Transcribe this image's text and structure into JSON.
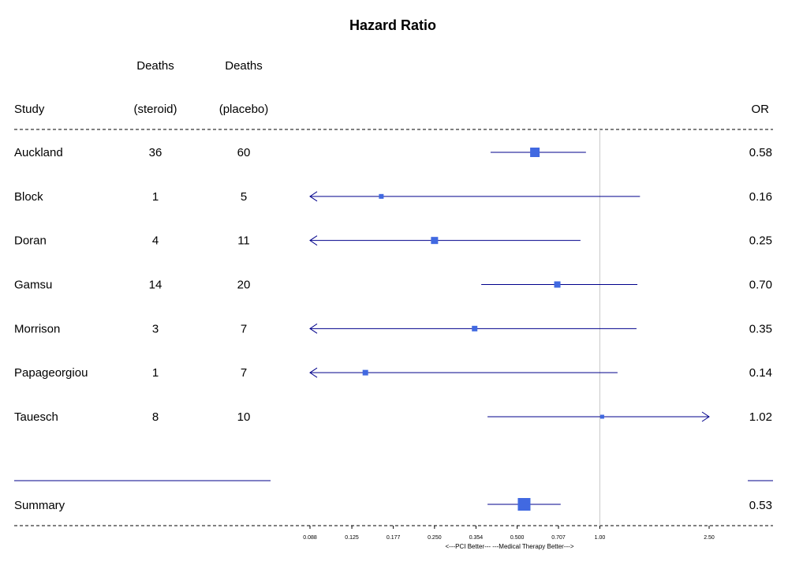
{
  "chart_data": {
    "type": "forest",
    "title": "Hazard Ratio",
    "columns": {
      "study_header": "Study",
      "steroid_header_line1": "Deaths",
      "steroid_header_line2": "(steroid)",
      "placebo_header_line1": "Deaths",
      "placebo_header_line2": "(placebo)",
      "or_header": "OR"
    },
    "studies": [
      {
        "study": "Auckland",
        "deaths_steroid": "36",
        "deaths_placebo": "60",
        "or_label": "0.58",
        "or": 0.58,
        "ci_low": 0.4,
        "ci_high": 0.89,
        "weight": 1.0
      },
      {
        "study": "Block",
        "deaths_steroid": "1",
        "deaths_placebo": "5",
        "or_label": "0.16",
        "or": 0.16,
        "ci_low": 0.02,
        "ci_high": 1.4,
        "weight": 0.5
      },
      {
        "study": "Doran",
        "deaths_steroid": "4",
        "deaths_placebo": "11",
        "or_label": "0.25",
        "or": 0.25,
        "ci_low": 0.03,
        "ci_high": 0.85,
        "weight": 0.75
      },
      {
        "study": "Gamsu",
        "deaths_steroid": "14",
        "deaths_placebo": "20",
        "or_label": "0.70",
        "or": 0.7,
        "ci_low": 0.37,
        "ci_high": 1.37,
        "weight": 0.7
      },
      {
        "study": "Morrison",
        "deaths_steroid": "3",
        "deaths_placebo": "7",
        "or_label": "0.35",
        "or": 0.35,
        "ci_low": 0.04,
        "ci_high": 1.36,
        "weight": 0.6
      },
      {
        "study": "Papageorgiou",
        "deaths_steroid": "1",
        "deaths_placebo": "7",
        "or_label": "0.14",
        "or": 0.14,
        "ci_low": 0.02,
        "ci_high": 1.16,
        "weight": 0.6
      },
      {
        "study": "Tauesch",
        "deaths_steroid": "8",
        "deaths_placebo": "10",
        "or_label": "1.02",
        "or": 1.02,
        "ci_low": 0.39,
        "ci_high": 5.0,
        "weight": 0.4
      }
    ],
    "summary": {
      "label": "Summary",
      "or_label": "0.53",
      "or": 0.53,
      "ci_low": 0.39,
      "ci_high": 0.72
    },
    "x_axis": {
      "scale": "log",
      "xlim": [
        0.088,
        2.5
      ],
      "ticks": [
        0.088,
        0.125,
        0.177,
        0.25,
        0.354,
        0.5,
        0.707,
        1.0,
        2.5
      ],
      "tick_labels": [
        "0.088",
        "0.125",
        "0.177",
        "0.250",
        "0.354",
        "0.500",
        "0.707",
        "1.00",
        "2.50"
      ],
      "caption": "<---PCI Better---  ---Medical Therapy Better--->"
    },
    "reference_line": 1.0,
    "colors": {
      "box": "#4169E1",
      "ci_line": "#00008B",
      "reference": "#C8C8C8",
      "dashed": "#000000"
    }
  }
}
